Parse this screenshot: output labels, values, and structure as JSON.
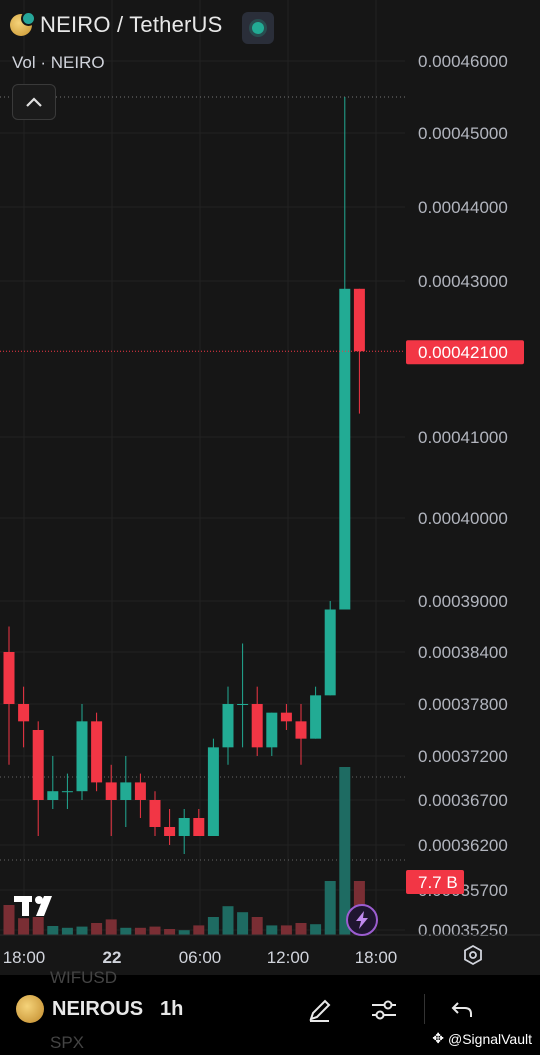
{
  "header": {
    "symbol_title": "NEIRO / TetherUS",
    "volume_legend": "Vol · NEIRO"
  },
  "icons": {
    "coin": "neiro-coin-icon",
    "status": "market-open-dot-icon",
    "collapse": "chevron-up-icon",
    "logo": "tradingview-logo-icon",
    "flash": "lightning-icon",
    "settings": "settings-hexagon-icon",
    "draw": "pencil-icon",
    "indicators": "sliders-icon",
    "undo": "undo-icon"
  },
  "chart_data": {
    "type": "candlestick",
    "price_axis_labels": [
      "0.00046000",
      "0.00045000",
      "0.00044000",
      "0.00043000",
      "0.00041000",
      "0.00040000",
      "0.00039000",
      "0.00038400",
      "0.00037800",
      "0.00037200",
      "0.00036700",
      "0.00036200",
      "0.00035700",
      "0.00035250"
    ],
    "price_axis_scale": "log",
    "time_axis_labels": [
      "18:00",
      "22",
      "06:00",
      "12:00",
      "18:00"
    ],
    "current_price_label": "0.00042100",
    "volume_label": "7.7 B",
    "colors": {
      "up": "#22ab94",
      "down": "#f23645",
      "volume_up": "#1e6b62",
      "volume_down": "#7a2e34",
      "background": "#161616"
    },
    "candles": [
      {
        "time": "-",
        "open": 0.000384,
        "high": 0.000387,
        "low": 0.000371,
        "close": 0.000378,
        "volume_relative": 0.5
      },
      {
        "time": "-",
        "open": 0.000378,
        "high": 0.00038,
        "low": 0.000373,
        "close": 0.000376,
        "volume_relative": 0.28
      },
      {
        "time": "-",
        "open": 0.000375,
        "high": 0.000376,
        "low": 0.000363,
        "close": 0.000367,
        "volume_relative": 0.3
      },
      {
        "time": "-",
        "open": 0.000367,
        "high": 0.000372,
        "low": 0.000366,
        "close": 0.000368,
        "volume_relative": 0.15
      },
      {
        "time": "-",
        "open": 0.000368,
        "high": 0.00037,
        "low": 0.000366,
        "close": 0.000368,
        "volume_relative": 0.12
      },
      {
        "time": "-",
        "open": 0.000368,
        "high": 0.000378,
        "low": 0.000367,
        "close": 0.000376,
        "volume_relative": 0.14
      },
      {
        "time": "-",
        "open": 0.000376,
        "high": 0.000377,
        "low": 0.000368,
        "close": 0.000369,
        "volume_relative": 0.2
      },
      {
        "time": "-",
        "open": 0.000369,
        "high": 0.000371,
        "low": 0.000363,
        "close": 0.000367,
        "volume_relative": 0.26
      },
      {
        "time": "-",
        "open": 0.000367,
        "high": 0.000372,
        "low": 0.000364,
        "close": 0.000369,
        "volume_relative": 0.12
      },
      {
        "time": "-",
        "open": 0.000369,
        "high": 0.00037,
        "low": 0.000365,
        "close": 0.000367,
        "volume_relative": 0.12
      },
      {
        "time": "-",
        "open": 0.000367,
        "high": 0.000368,
        "low": 0.000363,
        "close": 0.000364,
        "volume_relative": 0.14
      },
      {
        "time": "-",
        "open": 0.000364,
        "high": 0.000366,
        "low": 0.000362,
        "close": 0.000363,
        "volume_relative": 0.1
      },
      {
        "time": "-",
        "open": 0.000363,
        "high": 0.000366,
        "low": 0.000361,
        "close": 0.000365,
        "volume_relative": 0.08
      },
      {
        "time": "-",
        "open": 0.000365,
        "high": 0.000366,
        "low": 0.000363,
        "close": 0.000363,
        "volume_relative": 0.16
      },
      {
        "time": "-",
        "open": 0.000363,
        "high": 0.000374,
        "low": 0.000363,
        "close": 0.000373,
        "volume_relative": 0.3
      },
      {
        "time": "-",
        "open": 0.000373,
        "high": 0.00038,
        "low": 0.000371,
        "close": 0.000378,
        "volume_relative": 0.48
      },
      {
        "time": "-",
        "open": 0.000378,
        "high": 0.000385,
        "low": 0.000373,
        "close": 0.000378,
        "volume_relative": 0.38
      },
      {
        "time": "-",
        "open": 0.000378,
        "high": 0.00038,
        "low": 0.000372,
        "close": 0.000373,
        "volume_relative": 0.3
      },
      {
        "time": "-",
        "open": 0.000373,
        "high": 0.000377,
        "low": 0.000372,
        "close": 0.000377,
        "volume_relative": 0.16
      },
      {
        "time": "-",
        "open": 0.000377,
        "high": 0.000378,
        "low": 0.000375,
        "close": 0.000376,
        "volume_relative": 0.16
      },
      {
        "time": "-",
        "open": 0.000376,
        "high": 0.000378,
        "low": 0.000371,
        "close": 0.000374,
        "volume_relative": 0.2
      },
      {
        "time": "-",
        "open": 0.000374,
        "high": 0.00038,
        "low": 0.000374,
        "close": 0.000379,
        "volume_relative": 0.18
      },
      {
        "time": "-",
        "open": 0.000379,
        "high": 0.00039,
        "low": 0.000379,
        "close": 0.000389,
        "volume_relative": 0.9
      },
      {
        "time": "-",
        "open": 0.000389,
        "high": 0.000455,
        "low": 0.000389,
        "close": 0.000429,
        "volume_relative": 2.8
      },
      {
        "time": "-",
        "open": 0.000429,
        "high": 0.000429,
        "low": 0.000413,
        "close": 0.000421,
        "volume_relative": 0.9
      }
    ]
  },
  "bottom_bar": {
    "symbol": "NEIROUS",
    "interval": "1h",
    "faded_above": "WIFUSD",
    "faded_below": "SPX"
  },
  "watermark": "@SignalVault"
}
